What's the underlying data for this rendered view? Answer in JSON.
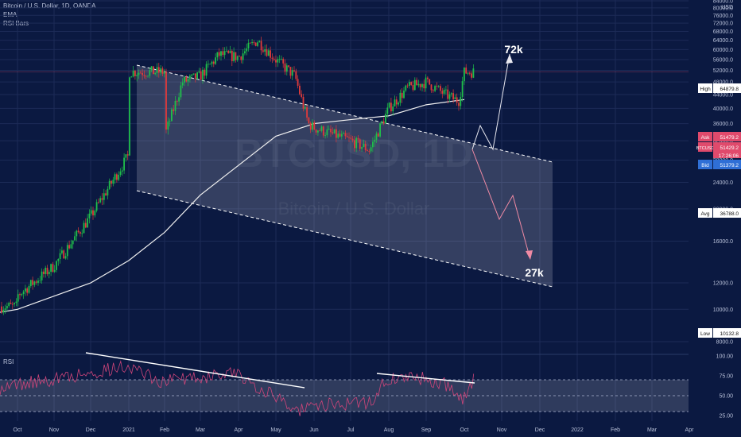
{
  "legend": {
    "line1": "Bitcoin / U.S. Dollar, 1D, OANDA",
    "line2": "EMA",
    "line3": "RSI Bars"
  },
  "watermark": {
    "symbol": "BTCUSD, 1D",
    "name": "Bitcoin / U.S. Dollar"
  },
  "annotations": {
    "target_up": "72k",
    "target_down": "27k"
  },
  "price_axis": {
    "currency": "USD",
    "ticks": [
      "84000.0",
      "80000.0",
      "76000.0",
      "72000.0",
      "68000.0",
      "64000.0",
      "60000.0",
      "56000.0",
      "52000.0",
      "48000.0",
      "44000.0",
      "40000.0",
      "36000.0",
      "32000.0",
      "28000.0",
      "24000.0",
      "20000.0",
      "16000.0",
      "12000.0",
      "10000.0",
      "8000.0"
    ],
    "tags": [
      {
        "label": "High",
        "value": "64879.8",
        "color": "#ffffff",
        "text": "#111111"
      },
      {
        "label": "Ask",
        "value": "51479.2",
        "color": "#e04a6c",
        "text": "#ffffff"
      },
      {
        "label": "BTCUSD",
        "value": "51429.2",
        "color": "#e04a6c",
        "text": "#ffffff"
      },
      {
        "label": "",
        "value": "17:26:06",
        "color": "#e04a6c",
        "text": "#ffffff"
      },
      {
        "label": "Bid",
        "value": "51379.2",
        "color": "#2f6fd6",
        "text": "#ffffff"
      },
      {
        "label": "Avg",
        "value": "36788.0",
        "color": "#ffffff",
        "text": "#111111"
      },
      {
        "label": "Low",
        "value": "10132.8",
        "color": "#ffffff",
        "text": "#111111"
      }
    ]
  },
  "rsi_panel": {
    "label": "RSI",
    "ticks": [
      "100.00",
      "75.00",
      "50.00",
      "25.00"
    ]
  },
  "time_axis": [
    "Oct",
    "Nov",
    "Dec",
    "2021",
    "Feb",
    "Mar",
    "Apr",
    "May",
    "Jun",
    "Jul",
    "Aug",
    "Sep",
    "Oct",
    "Nov",
    "Dec",
    "2022",
    "Feb",
    "Mar",
    "Apr"
  ],
  "chart_data": {
    "type": "candlestick",
    "title": "Bitcoin / U.S. Dollar, 1D, OANDA",
    "currency": "USD",
    "y_scale": "log",
    "ylim": [
      8000,
      84000
    ],
    "price_path": [
      [
        "Oct",
        11000
      ],
      [
        "Nov",
        13500
      ],
      [
        "Dec",
        19000
      ],
      [
        "2021",
        29000
      ],
      [
        "Jan mid",
        40000
      ],
      [
        "Feb",
        33000
      ],
      [
        "Feb mid",
        48000
      ],
      [
        "Mar",
        50000
      ],
      [
        "Mar mid",
        58000
      ],
      [
        "Apr",
        57000
      ],
      [
        "Apr mid",
        64000
      ],
      [
        "May",
        56000
      ],
      [
        "May mid",
        50000
      ],
      [
        "May end",
        36000
      ],
      [
        "Jun",
        35000
      ],
      [
        "Jul",
        32000
      ],
      [
        "Jul mid",
        30000
      ],
      [
        "Aug",
        40000
      ],
      [
        "Aug mid",
        46000
      ],
      [
        "Sep",
        48000
      ],
      [
        "Sep mid",
        44000
      ],
      [
        "Sep end",
        42000
      ],
      [
        "Oct",
        51429
      ]
    ],
    "ema_path": [
      [
        "Oct",
        10000
      ],
      [
        "Dec",
        12000
      ],
      [
        "2021",
        14000
      ],
      [
        "Feb",
        17000
      ],
      [
        "Mar",
        22000
      ],
      [
        "Apr",
        27000
      ],
      [
        "May",
        33000
      ],
      [
        "Jun",
        36000
      ],
      [
        "Jul",
        37000
      ],
      [
        "Aug",
        38000
      ],
      [
        "Sep",
        41000
      ],
      [
        "Oct",
        42500
      ]
    ],
    "channel": {
      "upper_start": [
        "2021",
        70000
      ],
      "upper_end": [
        "Dec",
        50000
      ],
      "lower_start": [
        "2021",
        41000
      ],
      "lower_end": [
        "Dec",
        21000
      ]
    },
    "projection_up": [
      [
        "Oct",
        51400
      ],
      [
        "Oct",
        56000
      ],
      [
        "Oct",
        50000
      ],
      [
        "Nov",
        72000
      ]
    ],
    "projection_down": [
      [
        "Oct",
        51400
      ],
      [
        "Nov",
        37000
      ],
      [
        "Nov",
        41000
      ],
      [
        "Dec",
        27000
      ]
    ],
    "rsi": {
      "levels": [
        70,
        50,
        30
      ],
      "ylim": [
        20,
        100
      ],
      "divergence_1": [
        [
          "Dec",
          90
        ],
        [
          "May",
          66
        ]
      ],
      "divergence_2": [
        [
          "Jul mid",
          78
        ],
        [
          "Oct",
          73
        ]
      ]
    }
  }
}
